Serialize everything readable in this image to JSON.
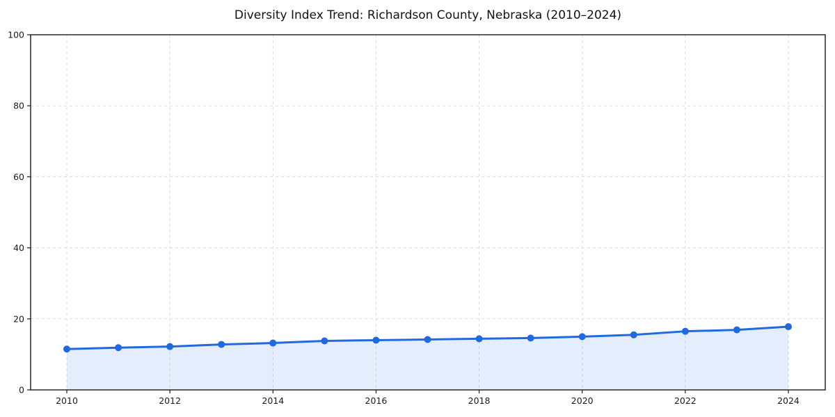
{
  "chart_data": {
    "type": "area",
    "title": "Diversity Index Trend: Richardson County, Nebraska (2010–2024)",
    "series_name": "Diversity Index",
    "x": [
      2010,
      2011,
      2012,
      2013,
      2014,
      2015,
      2016,
      2017,
      2018,
      2019,
      2020,
      2021,
      2022,
      2023,
      2024
    ],
    "values": [
      11.5,
      11.9,
      12.2,
      12.8,
      13.2,
      13.8,
      14.0,
      14.2,
      14.4,
      14.6,
      15.0,
      15.5,
      16.5,
      16.9,
      17.8
    ],
    "xlabel": "",
    "ylabel": "",
    "ylim": [
      0,
      100
    ],
    "yticks": [
      0,
      20,
      40,
      60,
      80,
      100
    ],
    "xticks": [
      2010,
      2012,
      2014,
      2016,
      2018,
      2020,
      2022,
      2024
    ],
    "grid": true,
    "grid_style": "dashed",
    "legend": false,
    "colors": {
      "line": "#2169e1",
      "marker": "#2169e1",
      "fill": "#2169e1",
      "fill_opacity": "0.12",
      "grid": "#dcdcdc",
      "axis": "#1a1a1a",
      "tick_text": "#1a1a1a",
      "background": "#ffffff"
    }
  }
}
